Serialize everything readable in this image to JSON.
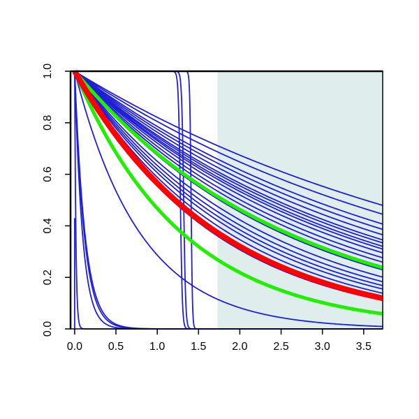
{
  "chart_data": {
    "type": "line",
    "title": "",
    "xlabel": "",
    "ylabel": "",
    "xlim": [
      -0.05,
      3.73
    ],
    "ylim": [
      0.0,
      1.0
    ],
    "x_ticks": [
      "0.0",
      "0.5",
      "1.0",
      "1.5",
      "2.0",
      "2.5",
      "3.0",
      "3.5"
    ],
    "y_ticks": [
      "0.0",
      "0.2",
      "0.4",
      "0.6",
      "0.8",
      "1.0"
    ],
    "grid": false,
    "legend": "none",
    "shaded_region": {
      "x_start": 1.73,
      "x_end": 3.73,
      "color": "#e0eded"
    },
    "colors": {
      "blue": "#1f1fd6",
      "red": "#ff0000",
      "green": "#22ee00",
      "shade": "#e0eded"
    },
    "series": [
      {
        "color": "blue",
        "kind": "exp",
        "rate": 0.197,
        "y_at_3_73": 0.48
      },
      {
        "color": "blue",
        "kind": "exp",
        "rate": 0.217,
        "y_at_3_73": 0.445
      },
      {
        "color": "blue",
        "kind": "exp",
        "rate": 0.241,
        "y_at_3_73": 0.407
      },
      {
        "color": "blue",
        "kind": "exp",
        "rate": 0.255,
        "y_at_3_73": 0.386
      },
      {
        "color": "blue",
        "kind": "exp",
        "rate": 0.27,
        "y_at_3_73": 0.365
      },
      {
        "color": "blue",
        "kind": "exp",
        "rate": 0.285,
        "y_at_3_73": 0.345
      },
      {
        "color": "blue",
        "kind": "exp",
        "rate": 0.294,
        "y_at_3_73": 0.334
      },
      {
        "color": "blue",
        "kind": "exp",
        "rate": 0.305,
        "y_at_3_73": 0.321
      },
      {
        "color": "blue",
        "kind": "exp",
        "rate": 0.314,
        "y_at_3_73": 0.31
      },
      {
        "color": "blue",
        "kind": "exp",
        "rate": 0.327,
        "y_at_3_73": 0.295
      },
      {
        "color": "blue",
        "kind": "exp",
        "rate": 0.345,
        "y_at_3_73": 0.276
      },
      {
        "color": "blue",
        "kind": "exp",
        "rate": 0.362,
        "y_at_3_73": 0.26
      },
      {
        "color": "blue",
        "kind": "exp",
        "rate": 0.38,
        "y_at_3_73": 0.242
      },
      {
        "color": "blue",
        "kind": "exp",
        "rate": 0.395,
        "y_at_3_73": 0.229
      },
      {
        "color": "blue",
        "kind": "exp",
        "rate": 0.43,
        "y_at_3_73": 0.201
      },
      {
        "color": "blue",
        "kind": "exp",
        "rate": 0.455,
        "y_at_3_73": 0.183
      },
      {
        "color": "blue",
        "kind": "exp",
        "rate": 0.478,
        "y_at_3_73": 0.168
      },
      {
        "color": "blue",
        "kind": "exp",
        "rate": 0.5,
        "y_at_3_73": 0.155
      },
      {
        "color": "blue",
        "kind": "exp",
        "rate": 0.53,
        "y_at_3_73": 0.139
      },
      {
        "color": "blue",
        "kind": "exp",
        "rate": 0.555,
        "y_at_3_73": 0.126
      },
      {
        "color": "blue",
        "kind": "exp",
        "rate": 0.59,
        "y_at_3_73": 0.111
      },
      {
        "color": "blue",
        "kind": "exp",
        "rate": 1.25,
        "y_at_3_73": 0.01
      },
      {
        "color": "blue",
        "kind": "exp",
        "rate": 8.0,
        "y_at_3_73": 0.0
      },
      {
        "color": "blue",
        "kind": "exp",
        "rate": 8.6,
        "y_at_3_73": 0.0
      },
      {
        "color": "blue",
        "kind": "exp",
        "rate": 10.5,
        "y_at_3_73": 0.0
      },
      {
        "color": "blue",
        "kind": "exp",
        "rate": 70.0,
        "y_at_3_73": 0.0
      },
      {
        "color": "blue",
        "kind": "step",
        "center": 1.28,
        "width": 0.012
      },
      {
        "color": "blue",
        "kind": "step",
        "center": 1.32,
        "width": 0.012
      },
      {
        "color": "blue",
        "kind": "step",
        "center": 1.41,
        "width": 0.008
      },
      {
        "color": "blue",
        "kind": "exp",
        "rate": 0.18,
        "x_start": 0.0,
        "spike": true,
        "spike_to": 0.43
      },
      {
        "color": "green",
        "kind": "exp",
        "rate": 0.385,
        "y_at_3_73": 0.237,
        "width": "thick"
      },
      {
        "color": "green",
        "kind": "exp",
        "rate": 0.76,
        "y_at_3_73": 0.06,
        "width": "thick"
      },
      {
        "color": "red",
        "kind": "exp",
        "rate": 0.57,
        "y_at_3_73": 0.12,
        "width": "very-thick"
      }
    ]
  }
}
